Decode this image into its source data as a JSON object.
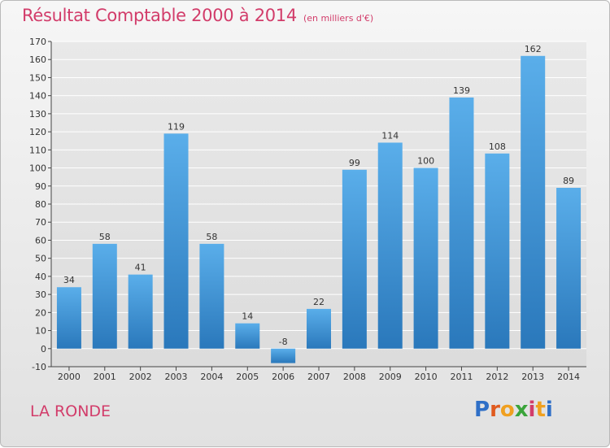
{
  "header": {
    "title": "Résultat Comptable 2000 à 2014",
    "subtitle": "(en milliers d'€)"
  },
  "commune": "LA RONDE",
  "logo": {
    "text": "Proxiti",
    "letter_colors": [
      "#2f6fc7",
      "#e05a1e",
      "#f0a020",
      "#3aa43a",
      "#d23c6a",
      "#f0a020",
      "#2f6fc7"
    ]
  },
  "chart_data": {
    "type": "bar",
    "categories": [
      "2000",
      "2001",
      "2002",
      "2003",
      "2004",
      "2005",
      "2006",
      "2007",
      "2008",
      "2009",
      "2010",
      "2011",
      "2012",
      "2013",
      "2014"
    ],
    "values": [
      34,
      58,
      41,
      119,
      58,
      14,
      -8,
      22,
      99,
      114,
      100,
      139,
      108,
      162,
      89
    ],
    "data_labels": [
      "34",
      "58",
      "41",
      "119",
      "58",
      "14",
      "-8",
      "22",
      "99",
      "114",
      "100",
      "139",
      "108",
      "162",
      "89"
    ],
    "ylim": [
      -10,
      170
    ],
    "yticks": [
      -10,
      0,
      10,
      20,
      30,
      40,
      50,
      60,
      70,
      80,
      90,
      100,
      110,
      120,
      130,
      140,
      150,
      160,
      170
    ],
    "grid": true,
    "bar_color": "#4fa3e3",
    "bar_color_dark": "#2a7dc0"
  }
}
